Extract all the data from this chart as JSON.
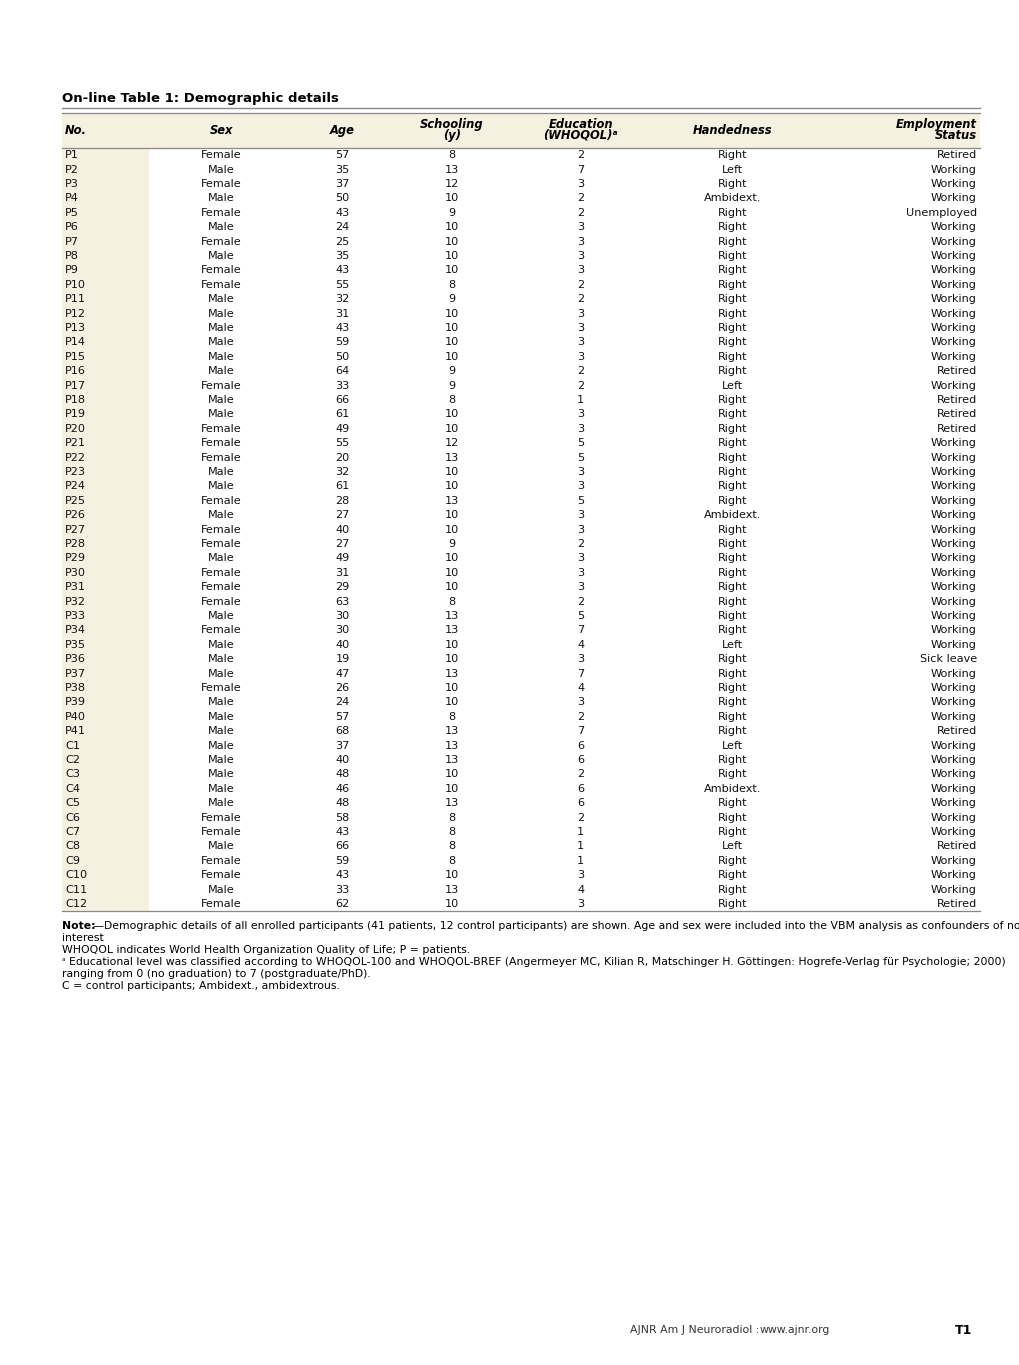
{
  "title": "On-line Table 1: Demographic details",
  "col_headers_line1": [
    "",
    "",
    "",
    "Schooling",
    "Education",
    "",
    "Employment"
  ],
  "col_headers_line2": [
    "No.",
    "Sex",
    "Age",
    "(y)",
    "(WHOQOL)ᵃ",
    "Handedness",
    "Status"
  ],
  "rows": [
    [
      "P1",
      "Female",
      "57",
      "8",
      "2",
      "Right",
      "Retired"
    ],
    [
      "P2",
      "Male",
      "35",
      "13",
      "7",
      "Left",
      "Working"
    ],
    [
      "P3",
      "Female",
      "37",
      "12",
      "3",
      "Right",
      "Working"
    ],
    [
      "P4",
      "Male",
      "50",
      "10",
      "2",
      "Ambidext.",
      "Working"
    ],
    [
      "P5",
      "Female",
      "43",
      "9",
      "2",
      "Right",
      "Unemployed"
    ],
    [
      "P6",
      "Male",
      "24",
      "10",
      "3",
      "Right",
      "Working"
    ],
    [
      "P7",
      "Female",
      "25",
      "10",
      "3",
      "Right",
      "Working"
    ],
    [
      "P8",
      "Male",
      "35",
      "10",
      "3",
      "Right",
      "Working"
    ],
    [
      "P9",
      "Female",
      "43",
      "10",
      "3",
      "Right",
      "Working"
    ],
    [
      "P10",
      "Female",
      "55",
      "8",
      "2",
      "Right",
      "Working"
    ],
    [
      "P11",
      "Male",
      "32",
      "9",
      "2",
      "Right",
      "Working"
    ],
    [
      "P12",
      "Male",
      "31",
      "10",
      "3",
      "Right",
      "Working"
    ],
    [
      "P13",
      "Male",
      "43",
      "10",
      "3",
      "Right",
      "Working"
    ],
    [
      "P14",
      "Male",
      "59",
      "10",
      "3",
      "Right",
      "Working"
    ],
    [
      "P15",
      "Male",
      "50",
      "10",
      "3",
      "Right",
      "Working"
    ],
    [
      "P16",
      "Male",
      "64",
      "9",
      "2",
      "Right",
      "Retired"
    ],
    [
      "P17",
      "Female",
      "33",
      "9",
      "2",
      "Left",
      "Working"
    ],
    [
      "P18",
      "Male",
      "66",
      "8",
      "1",
      "Right",
      "Retired"
    ],
    [
      "P19",
      "Male",
      "61",
      "10",
      "3",
      "Right",
      "Retired"
    ],
    [
      "P20",
      "Female",
      "49",
      "10",
      "3",
      "Right",
      "Retired"
    ],
    [
      "P21",
      "Female",
      "55",
      "12",
      "5",
      "Right",
      "Working"
    ],
    [
      "P22",
      "Female",
      "20",
      "13",
      "5",
      "Right",
      "Working"
    ],
    [
      "P23",
      "Male",
      "32",
      "10",
      "3",
      "Right",
      "Working"
    ],
    [
      "P24",
      "Male",
      "61",
      "10",
      "3",
      "Right",
      "Working"
    ],
    [
      "P25",
      "Female",
      "28",
      "13",
      "5",
      "Right",
      "Working"
    ],
    [
      "P26",
      "Male",
      "27",
      "10",
      "3",
      "Ambidext.",
      "Working"
    ],
    [
      "P27",
      "Female",
      "40",
      "10",
      "3",
      "Right",
      "Working"
    ],
    [
      "P28",
      "Female",
      "27",
      "9",
      "2",
      "Right",
      "Working"
    ],
    [
      "P29",
      "Male",
      "49",
      "10",
      "3",
      "Right",
      "Working"
    ],
    [
      "P30",
      "Female",
      "31",
      "10",
      "3",
      "Right",
      "Working"
    ],
    [
      "P31",
      "Female",
      "29",
      "10",
      "3",
      "Right",
      "Working"
    ],
    [
      "P32",
      "Female",
      "63",
      "8",
      "2",
      "Right",
      "Working"
    ],
    [
      "P33",
      "Male",
      "30",
      "13",
      "5",
      "Right",
      "Working"
    ],
    [
      "P34",
      "Female",
      "30",
      "13",
      "7",
      "Right",
      "Working"
    ],
    [
      "P35",
      "Male",
      "40",
      "10",
      "4",
      "Left",
      "Working"
    ],
    [
      "P36",
      "Male",
      "19",
      "10",
      "3",
      "Right",
      "Sick leave"
    ],
    [
      "P37",
      "Male",
      "47",
      "13",
      "7",
      "Right",
      "Working"
    ],
    [
      "P38",
      "Female",
      "26",
      "10",
      "4",
      "Right",
      "Working"
    ],
    [
      "P39",
      "Male",
      "24",
      "10",
      "3",
      "Right",
      "Working"
    ],
    [
      "P40",
      "Male",
      "57",
      "8",
      "2",
      "Right",
      "Working"
    ],
    [
      "P41",
      "Male",
      "68",
      "13",
      "7",
      "Right",
      "Retired"
    ],
    [
      "C1",
      "Male",
      "37",
      "13",
      "6",
      "Left",
      "Working"
    ],
    [
      "C2",
      "Male",
      "40",
      "13",
      "6",
      "Right",
      "Working"
    ],
    [
      "C3",
      "Male",
      "48",
      "10",
      "2",
      "Right",
      "Working"
    ],
    [
      "C4",
      "Male",
      "46",
      "10",
      "6",
      "Ambidext.",
      "Working"
    ],
    [
      "C5",
      "Male",
      "48",
      "13",
      "6",
      "Right",
      "Working"
    ],
    [
      "C6",
      "Female",
      "58",
      "8",
      "2",
      "Right",
      "Working"
    ],
    [
      "C7",
      "Female",
      "43",
      "8",
      "1",
      "Right",
      "Working"
    ],
    [
      "C8",
      "Male",
      "66",
      "8",
      "1",
      "Left",
      "Retired"
    ],
    [
      "C9",
      "Female",
      "59",
      "8",
      "1",
      "Right",
      "Working"
    ],
    [
      "C10",
      "Female",
      "43",
      "10",
      "3",
      "Right",
      "Working"
    ],
    [
      "C11",
      "Male",
      "33",
      "13",
      "4",
      "Right",
      "Working"
    ],
    [
      "C12",
      "Female",
      "62",
      "10",
      "3",
      "Right",
      "Retired"
    ]
  ],
  "header_bg": "#f5f0e0",
  "no_col_bg": "#f5f0e0",
  "page_bg": "#ffffff",
  "line_color": "#888888",
  "text_color": "#111111",
  "footer_left": "AJNR Am J Neuroradiol :",
  "footer_mid": "www.ajnr.org",
  "footer_right": "T1",
  "note_bold": "Note:",
  "note_line1": "—Demographic details of all enrolled participants (41 patients, 12 control participants) are shown. Age and sex were included into the VBM analysis as confounders of no interest",
  "note_line2": "WHOQOL indicates World Health Organization Quality of Life; P = patients.",
  "note_line3a": "ᵃ",
  "note_line3b": "Educational level was classified according to WHOQOL-100 and WHOQOL-BREF (Angermeyer MC, Kilian R, Matschinger H. Göttingen: Hogrefe-Verlag für Psychologie; 2000)",
  "note_line4": "ranging from 0 (no graduation) to 7 (postgraduate/PhD).",
  "note_line5": "C = control participants; Ambidext., ambidextrous."
}
